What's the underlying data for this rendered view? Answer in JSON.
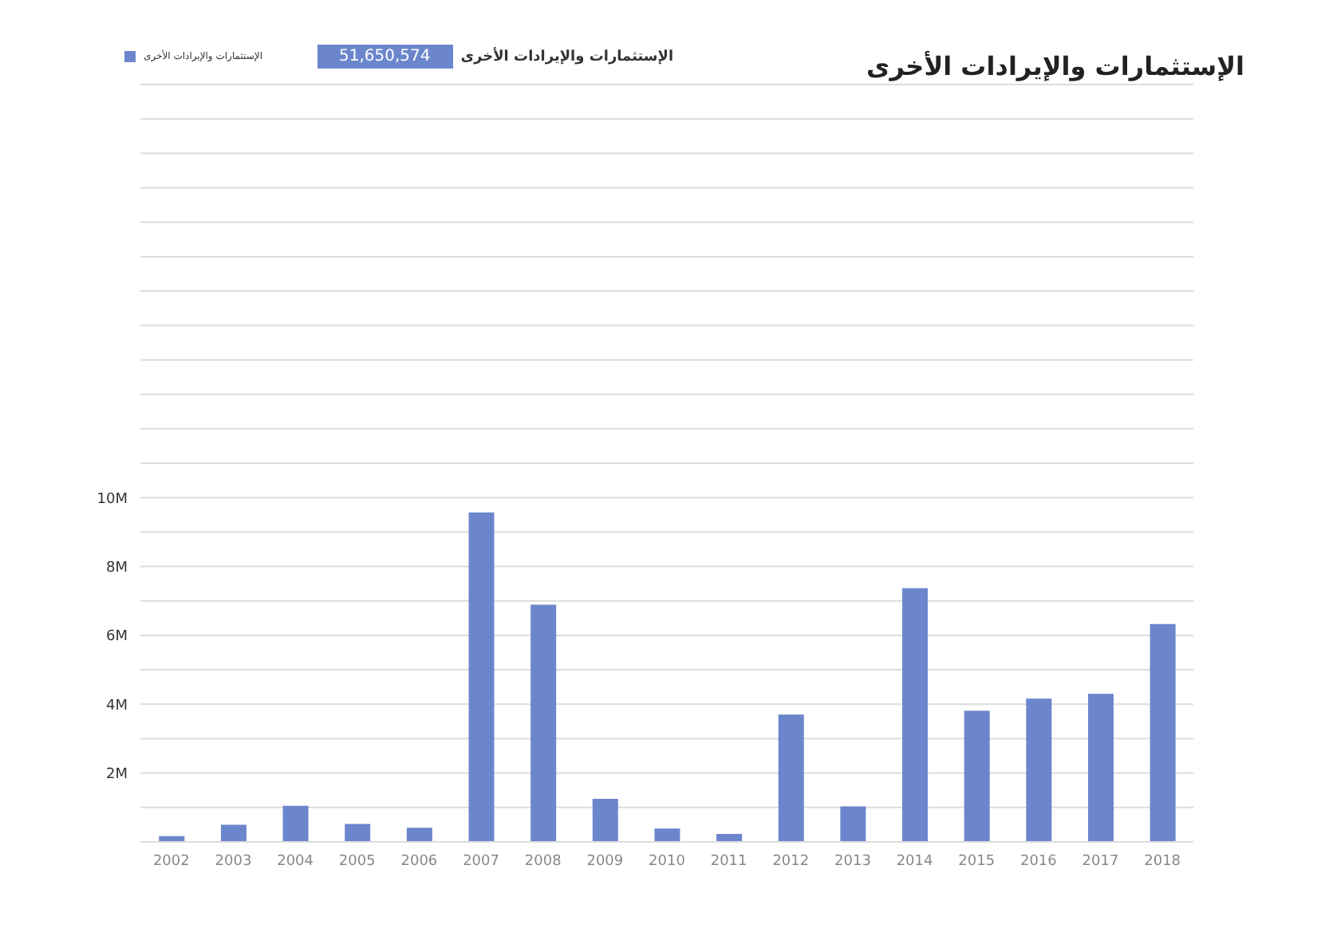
{
  "chart_data": {
    "type": "bar",
    "title": "الإستثمارات والإيرادات الأخرى",
    "annotations": [
      "الإستثمارات والإيرادات الأخرى",
      "51,650,574"
    ],
    "categories": [
      "2002",
      "2003",
      "2004",
      "2005",
      "2006",
      "2007",
      "2008",
      "2009",
      "2010",
      "2011",
      "2012",
      "2013",
      "2014",
      "2015",
      "2016",
      "2017",
      "2018"
    ],
    "series": [
      {
        "name": "الإستثمارات والإيرادات الأخرى",
        "color": "#6b86cc",
        "values": [
          170000,
          500000,
          1050000,
          520000,
          410000,
          9570000,
          6890000,
          1250000,
          390000,
          230000,
          3700000,
          1030000,
          7370000,
          3810000,
          4160000,
          4300000,
          6330000
        ]
      }
    ],
    "ylim": [
      0,
      22000000
    ],
    "yticks": [
      {
        "value": 1000000,
        "label": null
      },
      {
        "value": 2000000,
        "label": "2M"
      },
      {
        "value": 3000000,
        "label": null
      },
      {
        "value": 4000000,
        "label": "4M"
      },
      {
        "value": 5000000,
        "label": null
      },
      {
        "value": 6000000,
        "label": "6M"
      },
      {
        "value": 7000000,
        "label": null
      },
      {
        "value": 8000000,
        "label": "8M"
      },
      {
        "value": 9000000,
        "label": null
      },
      {
        "value": 10000000,
        "label": "10M"
      },
      {
        "value": 11000000,
        "label": null
      },
      {
        "value": 12000000,
        "label": null
      },
      {
        "value": 13000000,
        "label": null
      },
      {
        "value": 14000000,
        "label": null
      },
      {
        "value": 15000000,
        "label": null
      },
      {
        "value": 16000000,
        "label": null
      },
      {
        "value": 17000000,
        "label": null
      },
      {
        "value": 18000000,
        "label": null
      },
      {
        "value": 19000000,
        "label": null
      },
      {
        "value": 20000000,
        "label": null
      },
      {
        "value": 21000000,
        "label": null
      },
      {
        "value": 22000000,
        "label": null
      }
    ],
    "grid": "y",
    "legend": "top left"
  }
}
